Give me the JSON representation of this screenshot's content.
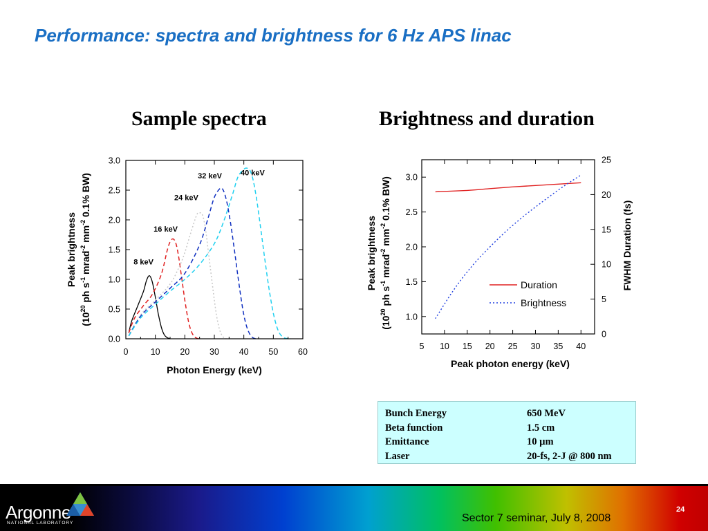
{
  "slide": {
    "title": "Performance: spectra and brightness for 6 Hz APS linac",
    "page_number": "24",
    "footer_note": "Sector 7 seminar, July 8, 2008",
    "logo": {
      "name": "Argonne",
      "subtitle": "NATIONAL LABORATORY"
    }
  },
  "left_panel": {
    "heading": "Sample spectra"
  },
  "right_panel": {
    "heading": "Brightness and duration"
  },
  "parameters": [
    {
      "label": "Bunch Energy",
      "value": "650 MeV"
    },
    {
      "label": "Beta function",
      "value": "1.5 cm"
    },
    {
      "label": "Emittance",
      "value": "10 µm"
    },
    {
      "label": "Laser",
      "value": "20-fs, 2-J @  800 nm"
    }
  ],
  "chart_data": [
    {
      "type": "line",
      "xlabel": "Photon Energy (keV)",
      "ylabel_line1": "Peak brightness",
      "ylabel_line2": "(10^20 ph s^-1 mrad^-2 mm^-2 0.1% BW)",
      "xlim": [
        0,
        60
      ],
      "ylim": [
        0,
        3
      ],
      "xticks": [
        "0",
        "10",
        "20",
        "30",
        "40",
        "50",
        "60"
      ],
      "yticks": [
        "0.0",
        "0.5",
        "1.0",
        "1.5",
        "2.0",
        "2.5",
        "3.0"
      ],
      "series": [
        {
          "name": "8 keV",
          "color": "#000000",
          "dash": "solid",
          "x": [
            1.0,
            2,
            4,
            6,
            7,
            8,
            9,
            10,
            11,
            12,
            13,
            14,
            15
          ],
          "y": [
            0.1,
            0.3,
            0.55,
            0.8,
            0.98,
            1.06,
            0.95,
            0.7,
            0.42,
            0.2,
            0.07,
            0.02,
            0.0
          ]
        },
        {
          "name": "16 keV",
          "color": "#e02020",
          "dash": "dashed",
          "x": [
            1.0,
            3,
            6,
            9,
            12,
            14,
            15,
            16,
            17,
            18,
            19,
            20,
            21,
            22,
            23,
            24,
            25
          ],
          "y": [
            0.1,
            0.35,
            0.56,
            0.75,
            1.08,
            1.48,
            1.63,
            1.68,
            1.6,
            1.35,
            1.0,
            0.65,
            0.35,
            0.15,
            0.05,
            0.01,
            0.0
          ]
        },
        {
          "name": "24 keV",
          "color": "#c8c8c8",
          "dash": "dotted",
          "x": [
            1.0,
            5,
            10,
            15,
            18,
            20,
            22,
            24,
            25,
            26,
            27,
            28,
            29,
            30,
            31,
            32,
            33,
            34
          ],
          "y": [
            0.05,
            0.4,
            0.65,
            0.92,
            1.2,
            1.45,
            1.78,
            2.08,
            2.12,
            2.08,
            1.85,
            1.45,
            1.05,
            0.65,
            0.32,
            0.12,
            0.03,
            0.0
          ]
        },
        {
          "name": "32 keV",
          "color": "#1030c0",
          "dash": "dashed",
          "x": [
            1.0,
            5,
            10,
            15,
            20,
            25,
            28,
            30,
            32,
            33,
            34,
            35,
            36,
            37,
            38,
            39,
            40,
            41,
            42,
            43,
            44
          ],
          "y": [
            0.05,
            0.38,
            0.62,
            0.85,
            1.1,
            1.58,
            2.05,
            2.38,
            2.53,
            2.5,
            2.35,
            2.1,
            1.78,
            1.42,
            1.05,
            0.7,
            0.4,
            0.2,
            0.08,
            0.02,
            0.0
          ]
        },
        {
          "name": "40 keV",
          "color": "#20d0f0",
          "dash": "dashed",
          "x": [
            1.0,
            5,
            10,
            15,
            20,
            25,
            30,
            33,
            36,
            38,
            40,
            41,
            42,
            43,
            44,
            45,
            46,
            47,
            48,
            49,
            50,
            51,
            52,
            53,
            54,
            56
          ],
          "y": [
            0.05,
            0.35,
            0.58,
            0.8,
            1.0,
            1.25,
            1.6,
            1.95,
            2.4,
            2.72,
            2.85,
            2.87,
            2.84,
            2.7,
            2.45,
            2.12,
            1.75,
            1.38,
            1.02,
            0.7,
            0.43,
            0.23,
            0.1,
            0.04,
            0.01,
            0.0
          ]
        }
      ],
      "annotations": [
        {
          "text": "8 keV",
          "x": 6.0,
          "y": 1.25
        },
        {
          "text": "16 keV",
          "x": 13.5,
          "y": 1.8
        },
        {
          "text": "24 keV",
          "x": 20.5,
          "y": 2.33
        },
        {
          "text": "32 keV",
          "x": 28.5,
          "y": 2.7
        },
        {
          "text": "40 keV",
          "x": 43.0,
          "y": 2.75
        }
      ]
    },
    {
      "type": "line",
      "xlabel": "Peak photon energy (keV)",
      "ylabel_left_line1": "Peak brightness",
      "ylabel_left_line2": "(10^20 ph s^-1 mrad^-2 mm^-2 0.1% BW)",
      "ylabel_right": "FWHM Duration (fs)",
      "xlim": [
        5,
        43
      ],
      "ylim_left": [
        0.75,
        3.25
      ],
      "ylim_right": [
        0,
        25
      ],
      "xticks": [
        "5",
        "10",
        "15",
        "20",
        "25",
        "30",
        "35",
        "40"
      ],
      "yticks_left": [
        "1.0",
        "1.5",
        "2.0",
        "2.5",
        "3.0"
      ],
      "yticks_right": [
        "0",
        "5",
        "10",
        "15",
        "20",
        "25"
      ],
      "series": [
        {
          "name": "Duration",
          "axis": "right",
          "color": "#e02020",
          "dash": "solid",
          "x": [
            8,
            15,
            20,
            25,
            30,
            35,
            40
          ],
          "y": [
            20.4,
            20.6,
            20.85,
            21.1,
            21.3,
            21.5,
            21.7
          ]
        },
        {
          "name": "Brightness",
          "axis": "left",
          "color": "#2040e0",
          "dash": "dotted",
          "x": [
            8,
            12,
            16,
            20,
            24,
            28,
            32,
            36,
            40
          ],
          "y": [
            0.97,
            1.38,
            1.72,
            2.0,
            2.25,
            2.47,
            2.67,
            2.86,
            3.03
          ]
        }
      ],
      "legend": {
        "placement": "right",
        "entries": [
          "Duration",
          "Brightness"
        ]
      }
    }
  ]
}
